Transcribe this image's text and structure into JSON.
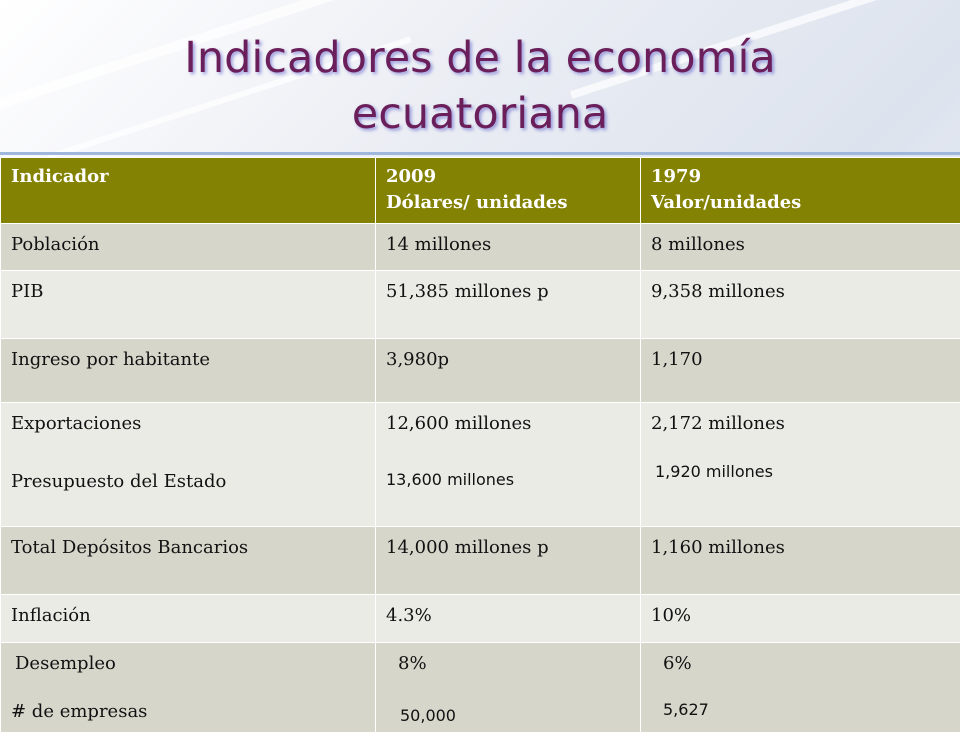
{
  "title_line1": "Indicadores de la economía",
  "title_line2": "ecuatoriana",
  "header": {
    "c1": "Indicador",
    "c2_line1": "2009",
    "c2_line2": "Dólares/ unidades",
    "c3_line1": "1979",
    "c3_line2": "Valor/unidades"
  },
  "rows": [
    {
      "c1": "Población",
      "c2": "14 millones",
      "c3": "8 millones"
    },
    {
      "c1": "PIB",
      "c2": "51,385 millones p",
      "c3": "9,358 millones"
    },
    {
      "c1": "Ingreso por habitante",
      "c2": "3,980p",
      "c3": "1,170"
    },
    {
      "c1a": "Exportaciones",
      "c1b": "Presupuesto del Estado",
      "c2a": "12,600 millones",
      "c2b": "13,600 millones",
      "c3a": "2,172 millones",
      "c3b": "1,920 millones"
    },
    {
      "c1": "Total Depósitos Bancarios",
      "c2": "14,000 millones p",
      "c3": "1,160 millones"
    },
    {
      "c1": "Inflación",
      "c2": "4.3%",
      "c3": "10%"
    },
    {
      "c1a": "Desempleo",
      "c1b": "# de empresas",
      "c2a": "8%",
      "c2b": "50,000",
      "c3a": "6%",
      "c3b": "5,627"
    }
  ]
}
